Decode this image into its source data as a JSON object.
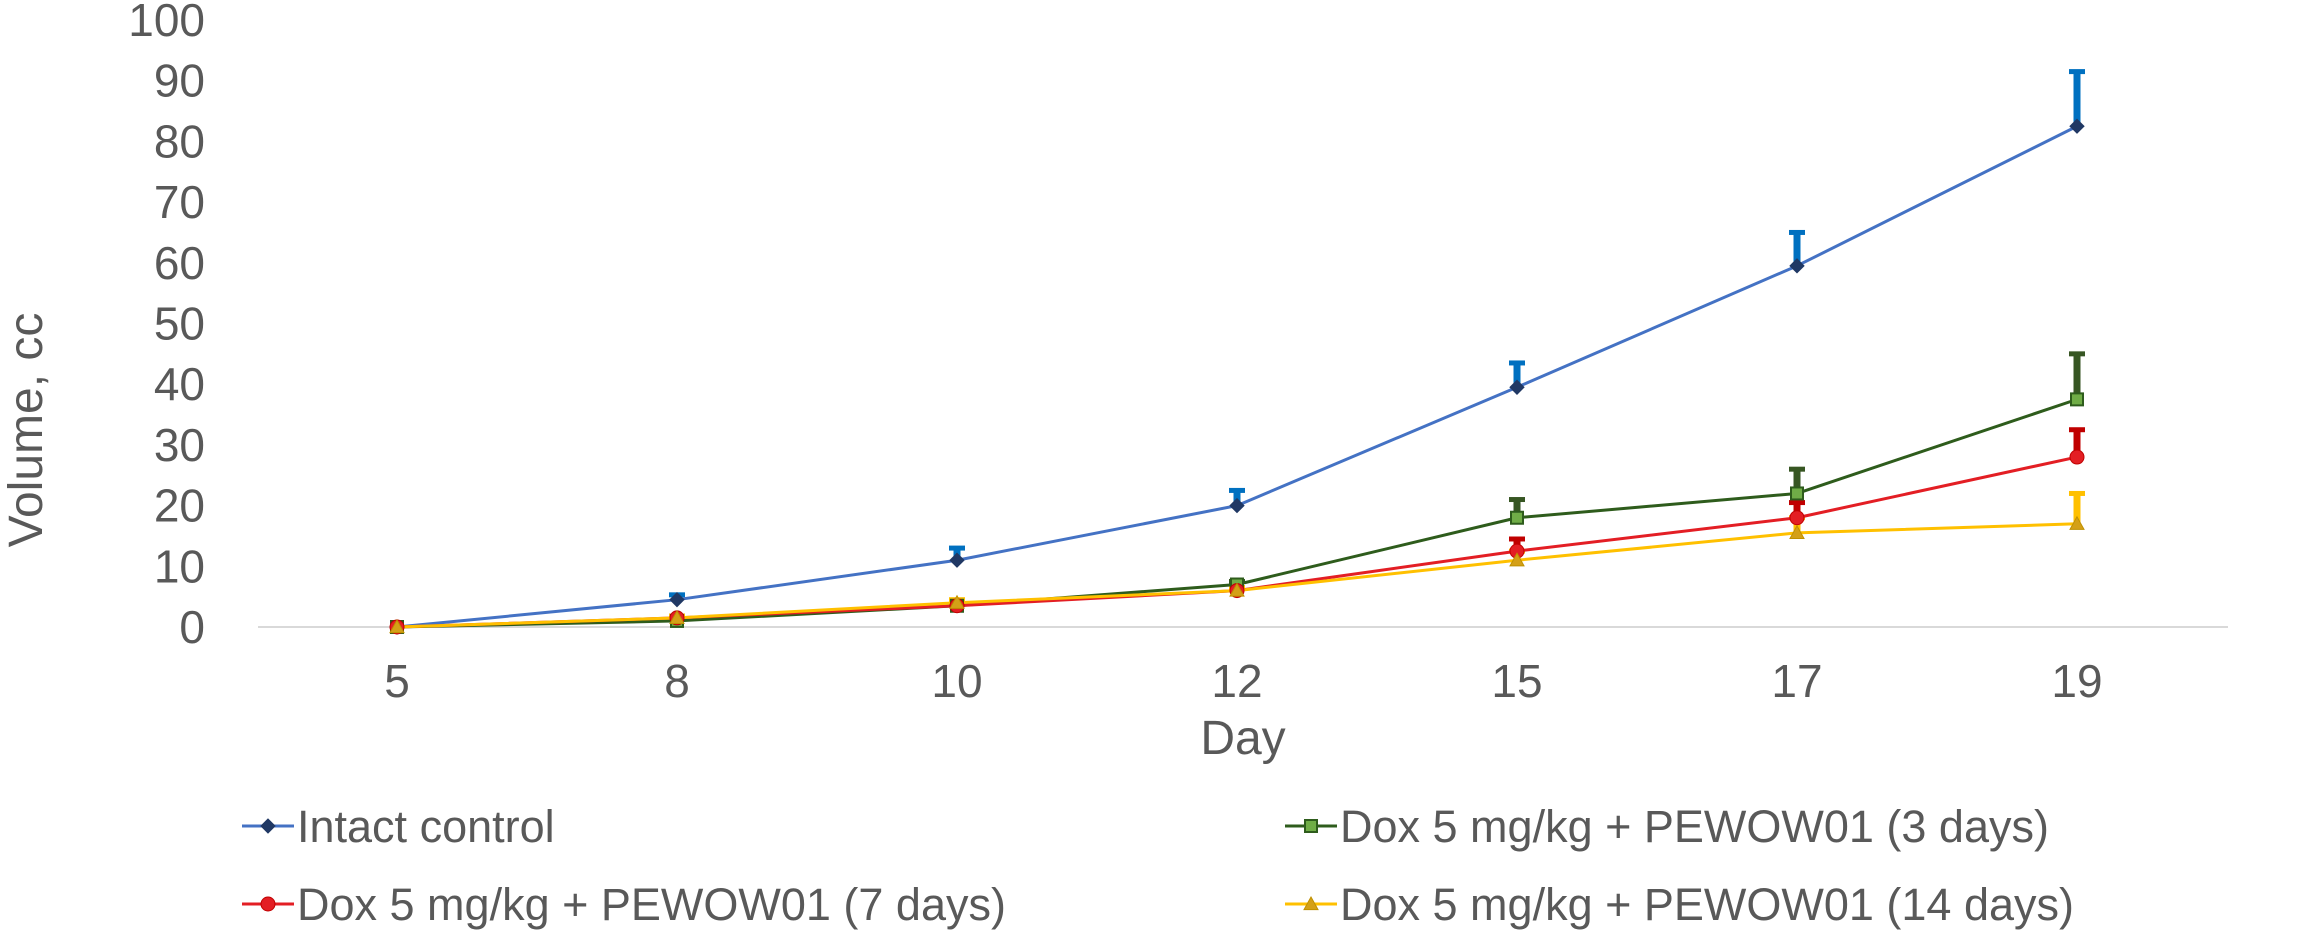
{
  "chart_data": {
    "type": "line",
    "title": "",
    "xlabel": "Day",
    "ylabel": "Volume, cc",
    "categories": [
      "5",
      "8",
      "10",
      "12",
      "15",
      "17",
      "19"
    ],
    "ylim": [
      0,
      100
    ],
    "yticks": [
      0,
      10,
      20,
      30,
      40,
      50,
      60,
      70,
      80,
      90,
      100
    ],
    "yticklabels": [
      "0",
      "10",
      "20",
      "30",
      "40",
      "50",
      "60",
      "70",
      "80",
      "90",
      "100"
    ],
    "grid": false,
    "legend_position": "bottom",
    "series": [
      {
        "name": "Intact control",
        "color": "#4472C4",
        "error_color": "#0070C0",
        "marker": "diamond",
        "values": [
          0,
          4.5,
          11,
          20,
          39.5,
          59.5,
          82.5
        ],
        "errors": [
          0,
          0.8,
          2,
          2.5,
          4,
          5.5,
          9
        ]
      },
      {
        "name": "Dox 5 mg/kg + PEWOW01 (3 days)",
        "color": "#2E5C1C",
        "error_color": "#375623",
        "marker": "square",
        "values": [
          0,
          1,
          3.5,
          7,
          18,
          22,
          37.5
        ],
        "errors": [
          0,
          0,
          0.5,
          0.5,
          3,
          4,
          7.5
        ]
      },
      {
        "name": "Dox 5 mg/kg + PEWOW01 (7 days)",
        "color": "#E31E24",
        "error_color": "#C00000",
        "marker": "circle",
        "values": [
          0,
          1.5,
          3.5,
          6,
          12.5,
          18,
          28
        ],
        "errors": [
          0,
          0.3,
          0.3,
          0.5,
          2,
          2.5,
          4.5
        ]
      },
      {
        "name": "Dox 5 mg/kg + PEWOW01 (14 days)",
        "color": "#FFC000",
        "error_color": "#FFC000",
        "marker": "triangle",
        "values": [
          0,
          1.5,
          4,
          6,
          11,
          15.5,
          17
        ],
        "errors": [
          0,
          0.3,
          0.5,
          0.5,
          1.5,
          2.5,
          5
        ]
      }
    ]
  }
}
